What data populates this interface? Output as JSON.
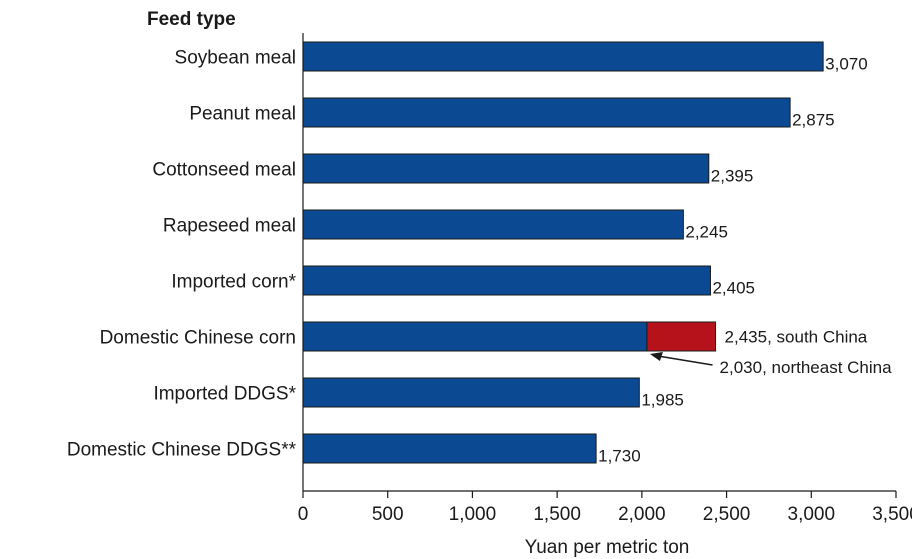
{
  "chart_data": {
    "type": "bar",
    "orientation": "horizontal",
    "category_header": "Feed type",
    "xlabel": "Yuan per metric ton",
    "xlim": [
      0,
      3500
    ],
    "xticks": [
      0,
      500,
      1000,
      1500,
      2000,
      2500,
      3000,
      3500
    ],
    "xtick_labels": [
      "0",
      "500",
      "1,000",
      "1,500",
      "2,000",
      "2,500",
      "3,000",
      "3,500"
    ],
    "grid": false,
    "categories": [
      "Soybean meal",
      "Peanut meal",
      "Cottonseed meal",
      "Rapeseed meal",
      "Imported corn*",
      "Domestic Chinese corn",
      "Imported DDGS*",
      "Domestic Chinese DDGS**"
    ],
    "values": [
      3070,
      2875,
      2395,
      2245,
      2405,
      2030,
      1985,
      1730
    ],
    "value_labels": [
      "3,070",
      "2,875",
      "2,395",
      "2,245",
      "2,405",
      "",
      "1,985",
      "1,730"
    ],
    "colors": {
      "bar": "#0b4a92",
      "extension": "#b5121b",
      "outline": "#1a1a1a"
    },
    "domestic_corn": {
      "northeast": 2030,
      "south": 2435,
      "south_label": "2,435, south China",
      "northeast_label": "2,030, northeast China"
    }
  }
}
